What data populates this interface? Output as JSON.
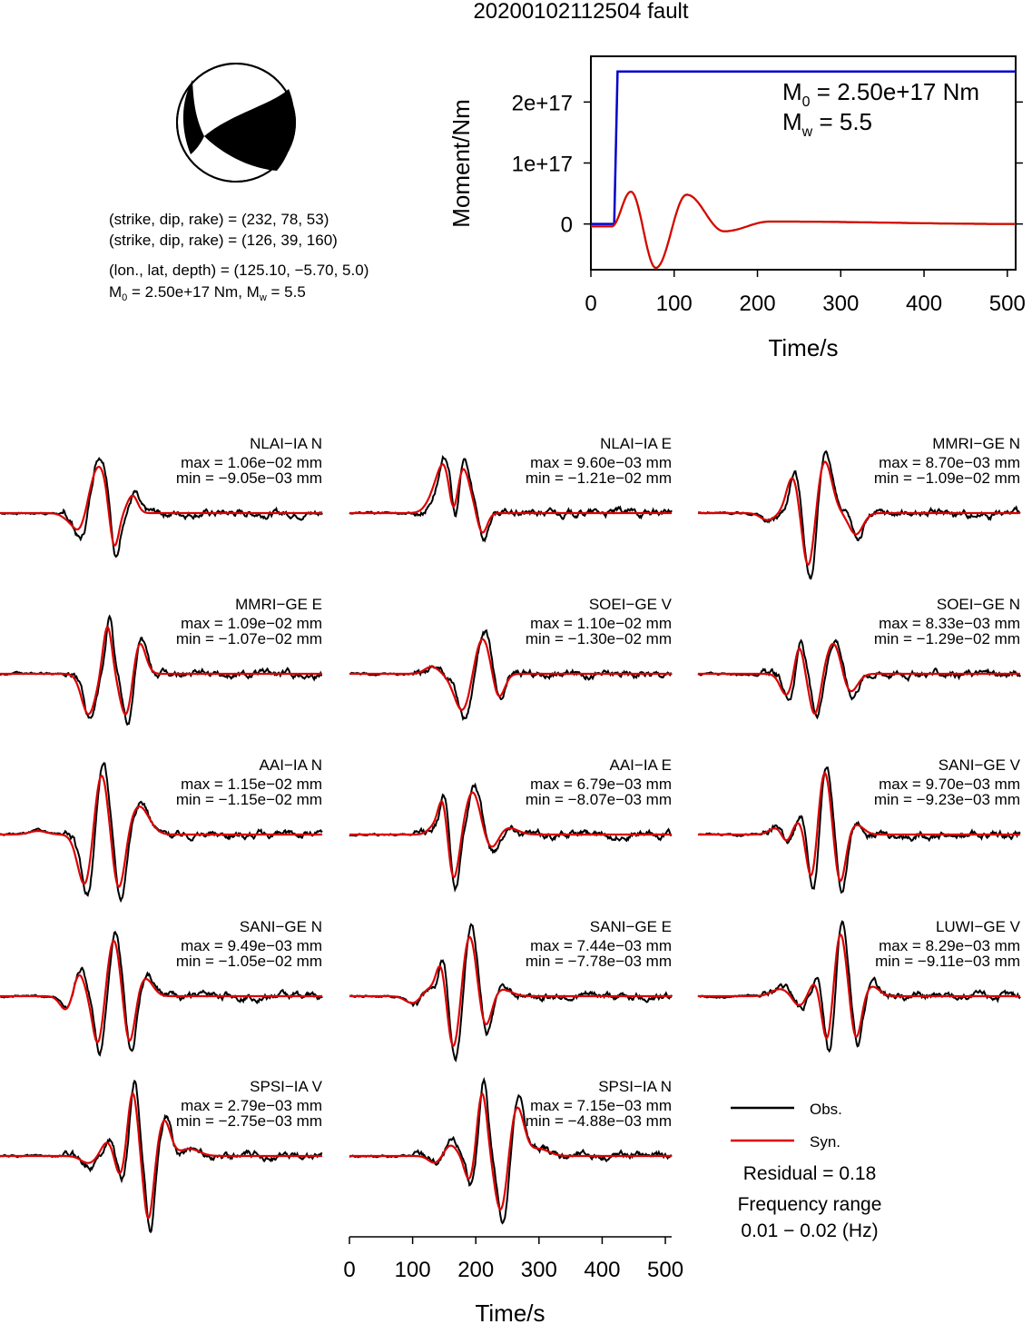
{
  "title": "20200102112504 fault",
  "beachball": {
    "plane1": "(strike, dip, rake) = (232, 78, 53)",
    "plane2": "(strike, dip, rake) = (126, 39, 160)",
    "location": "(lon., lat, depth) = (125.10, −5.70, 5.0)",
    "moment_prefix": "M",
    "moment_sub": "0",
    "moment_mid": " = 2.50e+17 Nm, M",
    "moment_sub2": "w",
    "moment_suffix": " = 5.5"
  },
  "stf_panel": {
    "ylabel": "Moment/Nm",
    "xlabel": "Time/s",
    "m0_prefix": "M",
    "m0_sub": "0",
    "m0_value": " = 2.50e+17 Nm",
    "mw_prefix": "M",
    "mw_sub": "w",
    "mw_value": " = 5.5",
    "xticks": [
      "0",
      "100",
      "200",
      "300",
      "400",
      "500"
    ],
    "yticks": [
      "0",
      "1e+17",
      "2e+17"
    ],
    "colors": {
      "moment": "#0000cc",
      "rate_a": "#33cc33",
      "rate_b": "#dd0000"
    }
  },
  "waveform_axis": {
    "xlabel": "Time/s",
    "xticks": [
      "0",
      "100",
      "200",
      "300",
      "400",
      "500"
    ]
  },
  "legend": {
    "obs": "Obs.",
    "syn": "Syn.",
    "residual": "Residual = 0.18",
    "freq_title": "Frequency range",
    "freq_value": "0.01 − 0.02 (Hz)",
    "colors": {
      "obs": "#000000",
      "syn": "#dd0000"
    }
  },
  "chart_data": [
    {
      "type": "line",
      "title": "",
      "xlabel": "Time/s",
      "ylabel": "Moment/Nm",
      "xlim": [
        0,
        510
      ],
      "ylim": [
        -7.5e+16,
        2.75e+17
      ],
      "series": [
        {
          "color": "#0000cc",
          "x": [
            0,
            28,
            32,
            510
          ],
          "y": [
            0,
            0,
            2.5e+17,
            2.5e+17
          ]
        },
        {
          "color": "#33cc33",
          "x": [
            0,
            25,
            48,
            78,
            115,
            160,
            215,
            510
          ],
          "y": [
            -4000000000000000.0,
            -4000000000000000.0,
            5.3e+16,
            -7.2e+16,
            4.8e+16,
            -1.2e+16,
            4000000000000000.0,
            0
          ]
        },
        {
          "color": "#dd0000",
          "x": [
            0,
            25,
            48,
            78,
            115,
            160,
            215,
            510
          ],
          "y": [
            -4000000000000000.0,
            -4000000000000000.0,
            5.3e+16,
            -7.2e+16,
            4.8e+16,
            -1.2e+16,
            4000000000000000.0,
            0
          ]
        }
      ]
    },
    {
      "type": "line",
      "xlabel": "Time/s",
      "xlim": [
        0,
        510
      ],
      "traces": [
        {
          "station": "NLAI−IA N",
          "max": "max = 1.06e−02 mm",
          "min": "min = −9.05e−03 mm",
          "syn_events": [
            [
              20,
              115,
              0.05
            ],
            [
              40,
              130,
              -0.65
            ],
            [
              50,
              150,
              0.86
            ],
            [
              20,
              180,
              -0.7
            ],
            [
              20,
              210,
              0.24
            ]
          ]
        },
        {
          "station": "NLAI−IA E",
          "max": "max = 9.60e−03 mm",
          "min": "min = −1.21e−02 mm",
          "syn_events": [
            [
              30,
              130,
              0.09
            ],
            [
              35,
              150,
              0.64
            ],
            [
              20,
              165,
              -0.82
            ],
            [
              35,
              175,
              0.74
            ],
            [
              20,
              210,
              -0.3
            ]
          ]
        },
        {
          "station": "MMRI−GE N",
          "max": "max = 8.70e−03 mm",
          "min": "min = −1.09e−02 mm",
          "syn_events": [
            [
              28,
              110,
              -0.1
            ],
            [
              25,
              150,
              0.52
            ],
            [
              25,
              175,
              -0.82
            ],
            [
              30,
              200,
              0.75
            ],
            [
              28,
              250,
              -0.3
            ]
          ]
        },
        {
          "station": "MMRI−GE E",
          "max": "max = 1.09e−02 mm",
          "min": "min = −1.07e−02 mm",
          "syn_events": [
            [
              28,
              140,
              -0.57
            ],
            [
              18,
              170,
              0.68
            ],
            [
              25,
              200,
              -0.62
            ],
            [
              25,
              220,
              0.48
            ]
          ]
        },
        {
          "station": "SOEI−GE V",
          "max": "max = 1.10e−02 mm",
          "min": "min = −1.30e−02 mm",
          "syn_events": [
            [
              28,
              130,
              0.1
            ],
            [
              35,
              180,
              -0.55
            ],
            [
              35,
              210,
              0.55
            ],
            [
              25,
              235,
              -0.4
            ]
          ]
        },
        {
          "station": "SOEI−GE N",
          "max": "max = 8.33e−03 mm",
          "min": "min = −1.29e−02 mm",
          "syn_events": [
            [
              25,
              140,
              -0.3
            ],
            [
              18,
              160,
              0.4
            ],
            [
              22,
              185,
              -0.58
            ],
            [
              30,
              215,
              0.45
            ],
            [
              30,
              240,
              -0.28
            ]
          ]
        },
        {
          "station": "AAI−IA N",
          "max": "max = 1.15e−02 mm",
          "min": "min = −1.15e−02 mm",
          "syn_events": [
            [
              35,
              60,
              0.05
            ],
            [
              30,
              135,
              -0.75
            ],
            [
              28,
              160,
              0.92
            ],
            [
              26,
              188,
              -0.82
            ],
            [
              40,
              220,
              0.4
            ]
          ]
        },
        {
          "station": "AAI−IA E",
          "max": "max = 6.79e−03 mm",
          "min": "min = −8.07e−03 mm",
          "syn_events": [
            [
              25,
              135,
              0.12
            ],
            [
              18,
              148,
              0.48
            ],
            [
              22,
              165,
              -0.65
            ],
            [
              30,
              195,
              0.6
            ],
            [
              28,
              225,
              -0.22
            ],
            [
              40,
              250,
              0.1
            ]
          ]
        },
        {
          "station": "SANI−GE V",
          "max": "max = 9.70e−03 mm",
          "min": "min = −9.23e−03 mm",
          "syn_events": [
            [
              30,
              125,
              0.1
            ],
            [
              20,
              140,
              -0.15
            ],
            [
              25,
              160,
              0.2
            ],
            [
              22,
              180,
              -0.7
            ],
            [
              25,
              200,
              0.92
            ],
            [
              22,
              225,
              -0.7
            ],
            [
              30,
              250,
              0.14
            ]
          ]
        },
        {
          "station": "SANI−GE N",
          "max": "max = 9.49e−03 mm",
          "min": "min = −1.05e−02 mm",
          "syn_events": [
            [
              25,
              105,
              -0.2
            ],
            [
              22,
              125,
              0.32
            ],
            [
              22,
              155,
              -0.68
            ],
            [
              25,
              180,
              0.8
            ],
            [
              22,
              205,
              -0.68
            ],
            [
              30,
              230,
              0.25
            ]
          ]
        },
        {
          "station": "SANI−GE E",
          "max": "max = 7.44e−03 mm",
          "min": "min = −7.78e−03 mm",
          "syn_events": [
            [
              30,
              100,
              -0.1
            ],
            [
              25,
              125,
              0.1
            ],
            [
              20,
              145,
              0.48
            ],
            [
              25,
              165,
              -0.78
            ],
            [
              28,
              190,
              0.88
            ],
            [
              25,
              215,
              -0.48
            ],
            [
              40,
              240,
              0.1
            ]
          ]
        },
        {
          "station": "LUWI−GE V",
          "max": "max = 8.29e−03 mm",
          "min": "min = −9.11e−03 mm",
          "syn_events": [
            [
              35,
              130,
              0.1
            ],
            [
              25,
              160,
              -0.14
            ],
            [
              22,
              185,
              0.2
            ],
            [
              22,
              205,
              -0.7
            ],
            [
              25,
              225,
              0.92
            ],
            [
              22,
              250,
              -0.62
            ],
            [
              30,
              275,
              0.14
            ]
          ]
        },
        {
          "station": "SPSI−IA V",
          "max": "max = 2.79e−03 mm",
          "min": "min = −2.75e−03 mm",
          "syn_events": [
            [
              30,
              140,
              -0.1
            ],
            [
              25,
              170,
              0.2
            ],
            [
              20,
              190,
              -0.3
            ],
            [
              20,
              210,
              0.9
            ],
            [
              20,
              235,
              -0.9
            ],
            [
              25,
              260,
              0.5
            ],
            [
              40,
              300,
              0.1
            ]
          ]
        },
        {
          "station": "SPSI−IA N",
          "max": "max = 7.15e−03 mm",
          "min": "min = −4.88e−03 mm",
          "syn_events": [
            [
              25,
              135,
              -0.1
            ],
            [
              25,
              160,
              0.15
            ],
            [
              20,
              190,
              -0.35
            ],
            [
              20,
              210,
              0.9
            ],
            [
              25,
              240,
              -0.8
            ],
            [
              28,
              265,
              0.7
            ],
            [
              40,
              300,
              0.1
            ]
          ]
        }
      ]
    }
  ]
}
